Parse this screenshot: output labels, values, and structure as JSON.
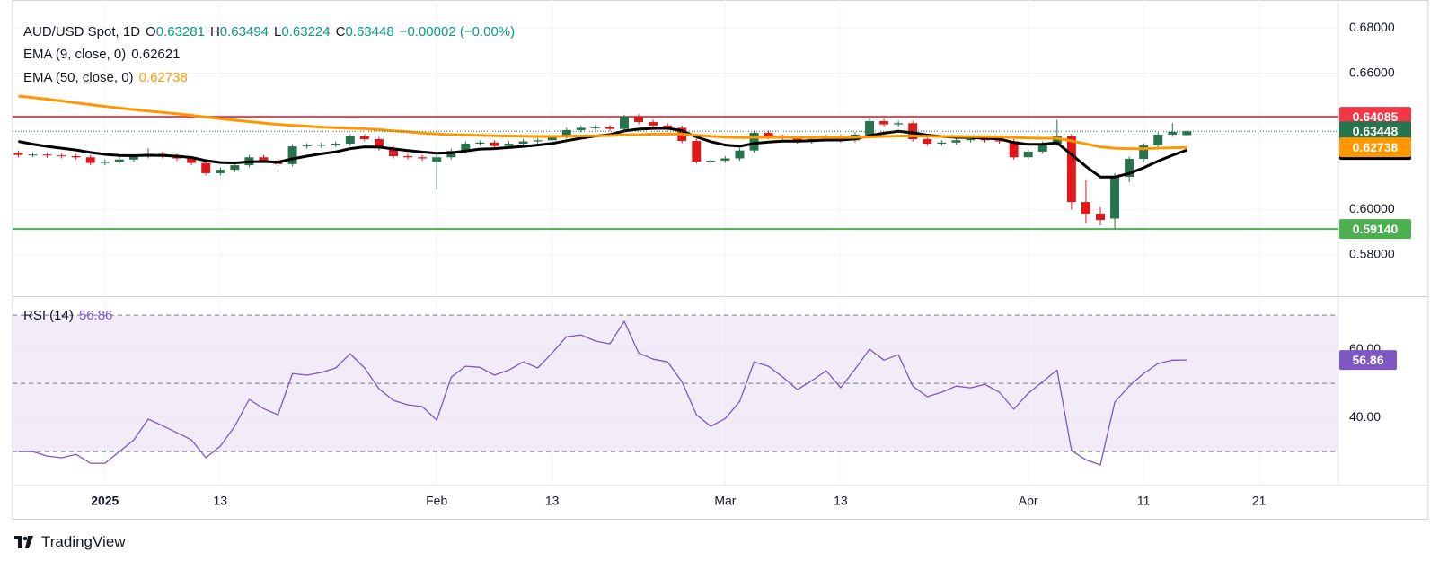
{
  "brand": "TradingView",
  "chart_data": [
    {
      "type": "candlestick",
      "title": "AUD/USD Spot, 1D",
      "ohlc_labels": [
        "O",
        "H",
        "L",
        "C"
      ],
      "change": "−0.00002 (−0.00%)",
      "up_color": "#26734d",
      "down_color": "#e0171b",
      "last_color": "#26734d",
      "open": [
        0.625,
        0.624,
        0.6242,
        0.6238,
        0.6235,
        0.623,
        0.6205,
        0.621,
        0.622,
        0.6235,
        0.6245,
        0.6235,
        0.6225,
        0.6205,
        0.616,
        0.6175,
        0.6195,
        0.623,
        0.6215,
        0.62,
        0.6278,
        0.6282,
        0.6285,
        0.629,
        0.6322,
        0.631,
        0.627,
        0.6235,
        0.623,
        0.621,
        0.623,
        0.6258,
        0.629,
        0.6295,
        0.628,
        0.629,
        0.63,
        0.6305,
        0.6322,
        0.635,
        0.636,
        0.6362,
        0.6355,
        0.641,
        0.6385,
        0.637,
        0.636,
        0.6302,
        0.6211,
        0.6215,
        0.6225,
        0.626,
        0.6338,
        0.632,
        0.6315,
        0.63,
        0.631,
        0.632,
        0.6305,
        0.633,
        0.6389,
        0.6375,
        0.638,
        0.631,
        0.629,
        0.6295,
        0.6305,
        0.631,
        0.6305,
        0.63,
        0.623,
        0.6255,
        0.629,
        0.6322,
        0.6033,
        0.5982,
        0.596,
        0.6144,
        0.6223,
        0.6282,
        0.633,
        0.63281
      ],
      "high": [
        0.626,
        0.6252,
        0.6252,
        0.6248,
        0.6245,
        0.624,
        0.622,
        0.623,
        0.6245,
        0.627,
        0.6255,
        0.6245,
        0.6235,
        0.6215,
        0.6185,
        0.6205,
        0.624,
        0.624,
        0.6225,
        0.6288,
        0.6292,
        0.6295,
        0.63,
        0.6332,
        0.6332,
        0.632,
        0.628,
        0.6245,
        0.624,
        0.624,
        0.6268,
        0.63,
        0.6305,
        0.6305,
        0.63,
        0.631,
        0.6315,
        0.6332,
        0.636,
        0.637,
        0.6372,
        0.6372,
        0.6418,
        0.642,
        0.6395,
        0.638,
        0.637,
        0.6312,
        0.6225,
        0.6235,
        0.627,
        0.6348,
        0.6348,
        0.633,
        0.6325,
        0.632,
        0.633,
        0.633,
        0.634,
        0.6399,
        0.6399,
        0.639,
        0.639,
        0.632,
        0.6305,
        0.6315,
        0.632,
        0.632,
        0.6315,
        0.631,
        0.6265,
        0.63,
        0.6395,
        0.6332,
        0.613,
        0.601,
        0.616,
        0.6233,
        0.6292,
        0.634,
        0.638,
        0.63494
      ],
      "low": [
        0.623,
        0.623,
        0.6228,
        0.6225,
        0.622,
        0.6195,
        0.6195,
        0.62,
        0.621,
        0.6225,
        0.6225,
        0.6215,
        0.6195,
        0.615,
        0.615,
        0.6165,
        0.6185,
        0.6205,
        0.619,
        0.619,
        0.6268,
        0.6272,
        0.6275,
        0.628,
        0.63,
        0.626,
        0.6225,
        0.622,
        0.6215,
        0.6088,
        0.622,
        0.6248,
        0.628,
        0.627,
        0.627,
        0.628,
        0.629,
        0.6295,
        0.6312,
        0.634,
        0.635,
        0.6345,
        0.6345,
        0.6375,
        0.636,
        0.635,
        0.6292,
        0.6201,
        0.6201,
        0.6205,
        0.6215,
        0.625,
        0.631,
        0.6305,
        0.629,
        0.629,
        0.63,
        0.6295,
        0.6295,
        0.632,
        0.6365,
        0.6365,
        0.63,
        0.628,
        0.628,
        0.6285,
        0.6295,
        0.6295,
        0.629,
        0.622,
        0.622,
        0.6245,
        0.628,
        0.6,
        0.594,
        0.593,
        0.5914,
        0.612,
        0.621,
        0.6275,
        0.632,
        0.63224
      ],
      "close": [
        0.624,
        0.6242,
        0.6238,
        0.6235,
        0.623,
        0.6205,
        0.621,
        0.622,
        0.6235,
        0.6245,
        0.6235,
        0.6225,
        0.6205,
        0.616,
        0.6175,
        0.6195,
        0.623,
        0.6215,
        0.62,
        0.6278,
        0.6282,
        0.6285,
        0.629,
        0.6322,
        0.631,
        0.627,
        0.6235,
        0.623,
        0.6225,
        0.623,
        0.6258,
        0.629,
        0.6295,
        0.628,
        0.629,
        0.63,
        0.6305,
        0.6322,
        0.635,
        0.636,
        0.6362,
        0.6355,
        0.641,
        0.6385,
        0.637,
        0.636,
        0.6302,
        0.6211,
        0.6215,
        0.6225,
        0.626,
        0.6338,
        0.632,
        0.6315,
        0.63,
        0.631,
        0.632,
        0.6305,
        0.633,
        0.6389,
        0.6375,
        0.638,
        0.631,
        0.629,
        0.6295,
        0.6305,
        0.631,
        0.6305,
        0.63,
        0.623,
        0.6255,
        0.629,
        0.6322,
        0.6033,
        0.5982,
        0.5954,
        0.6144,
        0.6223,
        0.6282,
        0.633,
        0.6342,
        0.63448
      ],
      "series": [
        {
          "name": "EMA (9, close, 0)",
          "color": "#000000",
          "values": [
            0.63,
            0.6288,
            0.6278,
            0.627,
            0.6262,
            0.6251,
            0.6243,
            0.6238,
            0.6237,
            0.6239,
            0.6238,
            0.6235,
            0.6229,
            0.6215,
            0.6207,
            0.6205,
            0.621,
            0.6211,
            0.6209,
            0.6223,
            0.6235,
            0.6245,
            0.6254,
            0.6268,
            0.6276,
            0.6275,
            0.6267,
            0.626,
            0.6253,
            0.6248,
            0.625,
            0.6258,
            0.6266,
            0.6268,
            0.6273,
            0.6278,
            0.6284,
            0.6291,
            0.6303,
            0.6314,
            0.6324,
            0.633,
            0.6346,
            0.6354,
            0.6357,
            0.6358,
            0.6347,
            0.632,
            0.6299,
            0.6284,
            0.6279,
            0.6291,
            0.6297,
            0.6301,
            0.6301,
            0.6303,
            0.6306,
            0.6306,
            0.6311,
            0.6326,
            0.6336,
            0.6345,
            0.6338,
            0.6328,
            0.6322,
            0.6318,
            0.6317,
            0.6314,
            0.6311,
            0.6295,
            0.6287,
            0.6288,
            0.6294,
            0.6242,
            0.619,
            0.6143,
            0.6143,
            0.6159,
            0.6184,
            0.6213,
            0.6239,
            0.62621
          ]
        },
        {
          "name": "EMA (50, close, 0)",
          "color": "#ff9800",
          "values": [
            0.65,
            0.6493,
            0.6486,
            0.6478,
            0.647,
            0.6462,
            0.6454,
            0.6447,
            0.644,
            0.6434,
            0.6428,
            0.6422,
            0.6415,
            0.6407,
            0.64,
            0.6393,
            0.6387,
            0.6381,
            0.6375,
            0.6371,
            0.6367,
            0.6363,
            0.636,
            0.6358,
            0.6356,
            0.6352,
            0.6347,
            0.6342,
            0.6337,
            0.6333,
            0.633,
            0.6328,
            0.6327,
            0.6325,
            0.6324,
            0.6323,
            0.6322,
            0.6322,
            0.6323,
            0.6324,
            0.6325,
            0.6326,
            0.6329,
            0.633,
            0.6332,
            0.6333,
            0.6332,
            0.6327,
            0.6323,
            0.6319,
            0.6317,
            0.6318,
            0.6318,
            0.6318,
            0.6317,
            0.6317,
            0.6317,
            0.6317,
            0.6318,
            0.632,
            0.6322,
            0.6324,
            0.6324,
            0.6323,
            0.6322,
            0.6322,
            0.6321,
            0.6321,
            0.632,
            0.6317,
            0.6315,
            0.6314,
            0.6314,
            0.6302,
            0.6289,
            0.6276,
            0.627,
            0.6268,
            0.6268,
            0.627,
            0.6272,
            0.62738
          ]
        }
      ],
      "levels": [
        {
          "value": 0.64085,
          "label": "0.64085",
          "color": "#f23645"
        },
        {
          "value": 0.5914,
          "label": "0.59140",
          "color": "#4caf50"
        }
      ],
      "xlim": [
        -0.4,
        91.5
      ],
      "xticks": [
        {
          "value": 6,
          "label": "2025"
        },
        {
          "value": 14,
          "label": "13"
        },
        {
          "value": 29,
          "label": "Feb"
        },
        {
          "value": 37,
          "label": "13"
        },
        {
          "value": 49,
          "label": "Mar"
        },
        {
          "value": 57,
          "label": "13"
        },
        {
          "value": 70,
          "label": "Apr"
        },
        {
          "value": 78,
          "label": "11"
        },
        {
          "value": 86,
          "label": "21"
        }
      ],
      "ylim": [
        0.5618,
        0.6923
      ],
      "yticks": [
        {
          "value": 0.58,
          "label": "0.58000"
        },
        {
          "value": 0.6,
          "label": "0.60000"
        },
        {
          "value": 0.66,
          "label": "0.66000"
        },
        {
          "value": 0.68,
          "label": "0.68000"
        }
      ],
      "grid": true
    },
    {
      "type": "line",
      "series": [
        {
          "name": "RSI (14)",
          "color": "#7e57c2",
          "values": [
            30,
            30,
            28.7,
            28.2,
            29.2,
            26.6,
            26.6,
            30,
            33.4,
            39.5,
            37.6,
            35.5,
            33.4,
            28.2,
            31.6,
            37.4,
            45.3,
            42.6,
            40.8,
            52.9,
            52.4,
            53.2,
            54.5,
            58.7,
            54.5,
            48.4,
            45.0,
            43.7,
            43.2,
            39.2,
            51.8,
            55.0,
            54.7,
            52.4,
            53.9,
            56.3,
            54.5,
            58.9,
            63.7,
            64.2,
            62.4,
            61.6,
            68.2,
            58.9,
            57.1,
            56.3,
            50.5,
            40.8,
            37.4,
            39.7,
            44.7,
            56.3,
            55.0,
            51.8,
            48.2,
            50.8,
            53.7,
            48.7,
            54.2,
            60.0,
            56.8,
            58.4,
            49.2,
            46.1,
            47.4,
            49.2,
            48.7,
            49.7,
            47.4,
            42.4,
            47.1,
            50.5,
            53.9,
            30.3,
            27.6,
            26.1,
            44.5,
            49.2,
            52.9,
            55.8,
            56.8,
            56.86
          ]
        }
      ],
      "bands": [
        30,
        50,
        70
      ],
      "band_color": "#ede7f6",
      "ylim": [
        20.3,
        75.3
      ],
      "yticks": [
        {
          "value": 40,
          "label": "40.00"
        },
        {
          "value": 60,
          "label": "60.00"
        }
      ],
      "grid": true
    }
  ]
}
